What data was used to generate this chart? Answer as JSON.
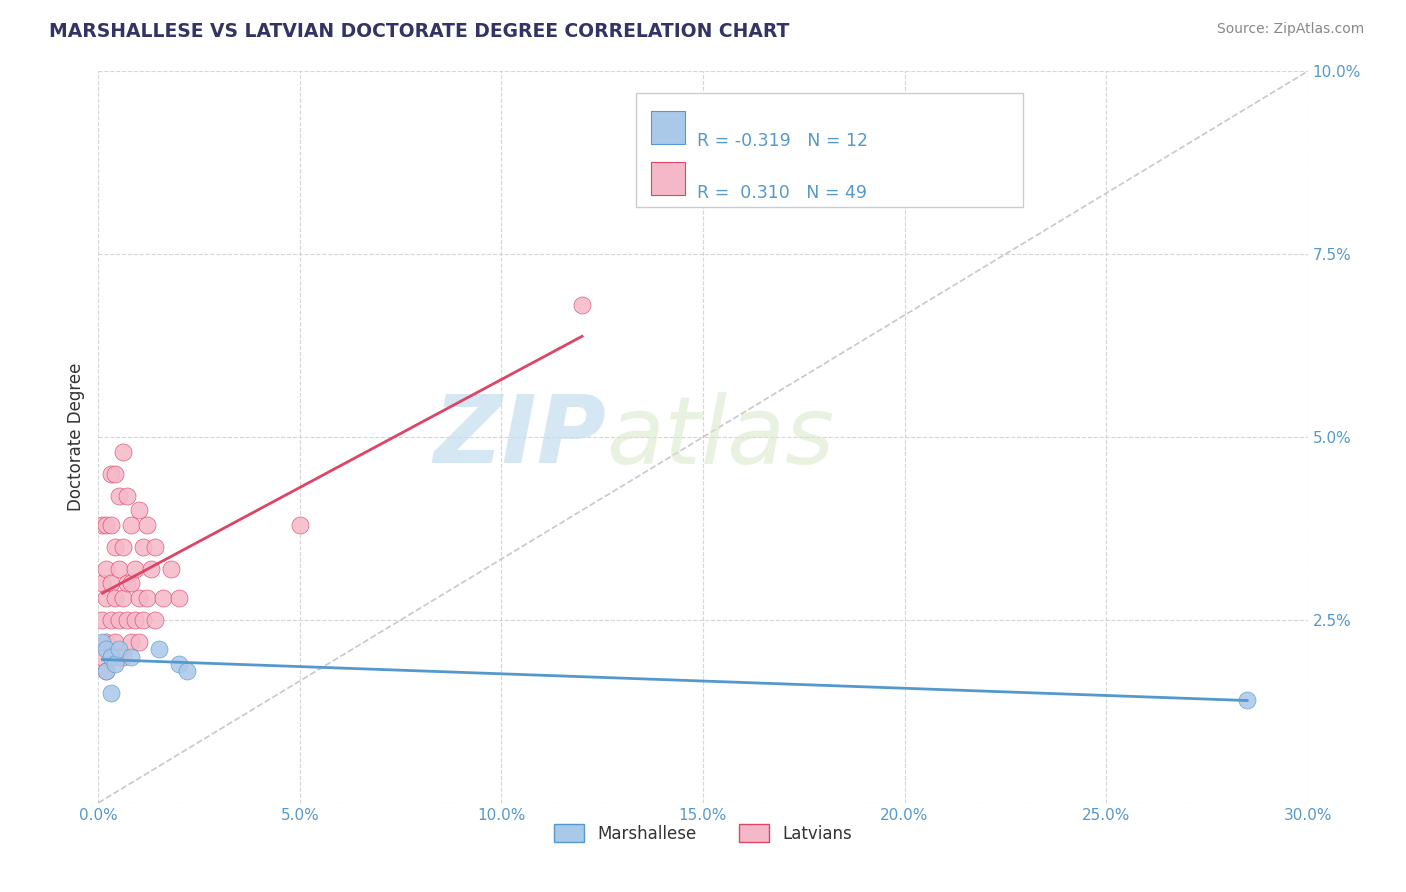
{
  "title": "MARSHALLESE VS LATVIAN DOCTORATE DEGREE CORRELATION CHART",
  "source": "Source: ZipAtlas.com",
  "ylabel": "Doctorate Degree",
  "xlim": [
    0.0,
    0.3
  ],
  "ylim": [
    0.0,
    0.1
  ],
  "xticks": [
    0.0,
    0.05,
    0.1,
    0.15,
    0.2,
    0.25,
    0.3
  ],
  "yticks": [
    0.0,
    0.025,
    0.05,
    0.075,
    0.1
  ],
  "xtick_labels": [
    "0.0%",
    "5.0%",
    "10.0%",
    "15.0%",
    "20.0%",
    "25.0%",
    "30.0%"
  ],
  "ytick_labels": [
    "",
    "2.5%",
    "5.0%",
    "7.5%",
    "10.0%"
  ],
  "legend_labels": [
    "Marshallese",
    "Latvians"
  ],
  "r_marshallese": -0.319,
  "n_marshallese": 12,
  "r_latvians": 0.31,
  "n_latvians": 49,
  "color_marshallese": "#aac8e8",
  "color_latvians": "#f5b8c8",
  "line_color_marshallese": "#5599cc",
  "line_color_latvians": "#dd4466",
  "watermark_zip": "ZIP",
  "watermark_atlas": "atlas",
  "background_color": "#ffffff",
  "marshallese_x": [
    0.001,
    0.002,
    0.002,
    0.003,
    0.003,
    0.004,
    0.005,
    0.008,
    0.015,
    0.02,
    0.022,
    0.285
  ],
  "marshallese_y": [
    0.022,
    0.021,
    0.018,
    0.02,
    0.015,
    0.019,
    0.021,
    0.02,
    0.021,
    0.019,
    0.018,
    0.014
  ],
  "latvians_x": [
    0.001,
    0.001,
    0.001,
    0.001,
    0.002,
    0.002,
    0.002,
    0.002,
    0.002,
    0.003,
    0.003,
    0.003,
    0.003,
    0.003,
    0.004,
    0.004,
    0.004,
    0.004,
    0.005,
    0.005,
    0.005,
    0.005,
    0.006,
    0.006,
    0.006,
    0.006,
    0.007,
    0.007,
    0.007,
    0.008,
    0.008,
    0.008,
    0.009,
    0.009,
    0.01,
    0.01,
    0.01,
    0.011,
    0.011,
    0.012,
    0.012,
    0.013,
    0.014,
    0.014,
    0.016,
    0.018,
    0.02,
    0.05,
    0.12
  ],
  "latvians_y": [
    0.02,
    0.025,
    0.03,
    0.038,
    0.018,
    0.022,
    0.028,
    0.032,
    0.038,
    0.02,
    0.025,
    0.03,
    0.038,
    0.045,
    0.022,
    0.028,
    0.035,
    0.045,
    0.02,
    0.025,
    0.032,
    0.042,
    0.02,
    0.028,
    0.035,
    0.048,
    0.025,
    0.03,
    0.042,
    0.022,
    0.03,
    0.038,
    0.025,
    0.032,
    0.022,
    0.028,
    0.04,
    0.025,
    0.035,
    0.028,
    0.038,
    0.032,
    0.025,
    0.035,
    0.028,
    0.032,
    0.028,
    0.038,
    0.068
  ]
}
